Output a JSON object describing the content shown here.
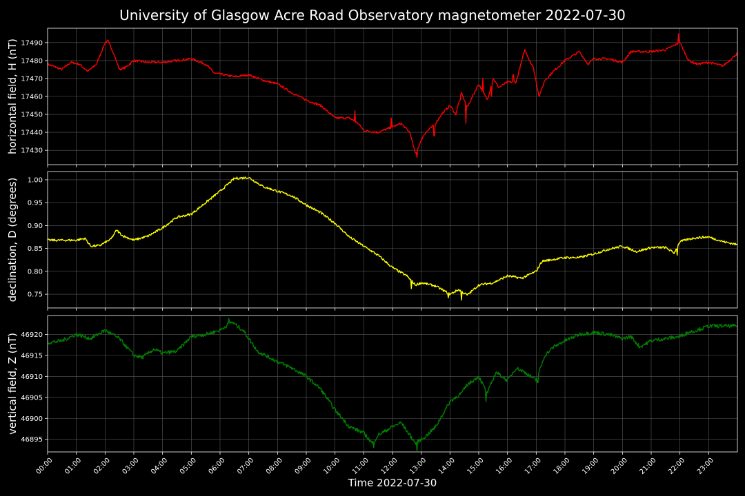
{
  "chart_data": {
    "title": "University of Glasgow Acre Road Observatory magnetometer 2022-07-30",
    "xlabel": "Time 2022-07-30",
    "x_ticks": [
      "00:00",
      "01:00",
      "02:00",
      "03:00",
      "04:00",
      "05:00",
      "06:00",
      "07:00",
      "08:00",
      "09:00",
      "10:00",
      "11:00",
      "12:00",
      "13:00",
      "14:00",
      "15:00",
      "16:00",
      "17:00",
      "18:00",
      "19:00",
      "20:00",
      "21:00",
      "22:00",
      "23:00"
    ],
    "x_range_hours": [
      0,
      24
    ],
    "grid": true,
    "panels": [
      {
        "type": "line",
        "name": "H",
        "ylabel": "horizontal field, H (nT)",
        "color": "#ff0000",
        "ylim": [
          17422,
          17498
        ],
        "y_ticks": [
          17430,
          17440,
          17450,
          17460,
          17470,
          17480,
          17490
        ],
        "noise": 0.6,
        "points": [
          [
            0,
            17478
          ],
          [
            0.5,
            17475
          ],
          [
            0.8,
            17479
          ],
          [
            1.1,
            17478
          ],
          [
            1.4,
            17474
          ],
          [
            1.7,
            17478
          ],
          [
            2.0,
            17490
          ],
          [
            2.1,
            17491
          ],
          [
            2.3,
            17484
          ],
          [
            2.5,
            17475
          ],
          [
            2.7,
            17476
          ],
          [
            3.0,
            17480
          ],
          [
            3.5,
            17479
          ],
          [
            4.0,
            17479
          ],
          [
            4.5,
            17480
          ],
          [
            5.0,
            17481
          ],
          [
            5.5,
            17478
          ],
          [
            5.8,
            17473
          ],
          [
            6.5,
            17471
          ],
          [
            7.0,
            17472
          ],
          [
            7.5,
            17469
          ],
          [
            8.0,
            17467
          ],
          [
            8.5,
            17462
          ],
          [
            9.0,
            17458
          ],
          [
            9.5,
            17455
          ],
          [
            10.0,
            17448
          ],
          [
            10.5,
            17448
          ],
          [
            10.8,
            17445
          ],
          [
            11.0,
            17441
          ],
          [
            11.5,
            17440
          ],
          [
            12.0,
            17443
          ],
          [
            12.3,
            17445
          ],
          [
            12.6,
            17440
          ],
          [
            12.8,
            17428
          ],
          [
            13.1,
            17439
          ],
          [
            13.5,
            17445
          ],
          [
            13.7,
            17450
          ],
          [
            14.0,
            17455
          ],
          [
            14.2,
            17450
          ],
          [
            14.4,
            17462
          ],
          [
            14.6,
            17454
          ],
          [
            15.0,
            17467
          ],
          [
            15.3,
            17458
          ],
          [
            15.5,
            17470
          ],
          [
            15.7,
            17465
          ],
          [
            16.0,
            17468
          ],
          [
            16.3,
            17468
          ],
          [
            16.6,
            17486
          ],
          [
            16.9,
            17476
          ],
          [
            17.1,
            17460
          ],
          [
            17.3,
            17469
          ],
          [
            17.6,
            17474
          ],
          [
            18.0,
            17480
          ],
          [
            18.5,
            17485
          ],
          [
            18.8,
            17478
          ],
          [
            19.0,
            17481
          ],
          [
            19.5,
            17481
          ],
          [
            20.0,
            17479
          ],
          [
            20.3,
            17485
          ],
          [
            20.6,
            17485
          ],
          [
            21.0,
            17485
          ],
          [
            21.5,
            17486
          ],
          [
            22.0,
            17490
          ],
          [
            22.3,
            17480
          ],
          [
            22.6,
            17478
          ],
          [
            23.0,
            17479
          ],
          [
            23.5,
            17477
          ],
          [
            24,
            17484
          ]
        ],
        "spikes": [
          [
            10.7,
            17452
          ],
          [
            10.9,
            17443
          ],
          [
            11.95,
            17448
          ],
          [
            12.85,
            17426
          ],
          [
            13.45,
            17438
          ],
          [
            14.35,
            17458
          ],
          [
            14.55,
            17445
          ],
          [
            15.15,
            17470
          ],
          [
            15.45,
            17460
          ],
          [
            16.2,
            17472
          ],
          [
            16.75,
            17480
          ],
          [
            21.95,
            17495
          ]
        ]
      },
      {
        "type": "line",
        "name": "D",
        "ylabel": "declination, D (degrees)",
        "color": "#ffff00",
        "ylim": [
          0.72,
          1.018
        ],
        "y_ticks": [
          "0.75",
          "0.80",
          "0.85",
          "0.90",
          "0.95",
          "1.00"
        ],
        "noise": 0.0025,
        "points": [
          [
            0,
            0.868
          ],
          [
            0.5,
            0.868
          ],
          [
            1.0,
            0.868
          ],
          [
            1.3,
            0.872
          ],
          [
            1.5,
            0.855
          ],
          [
            1.8,
            0.856
          ],
          [
            2.2,
            0.87
          ],
          [
            2.4,
            0.89
          ],
          [
            2.6,
            0.878
          ],
          [
            3.0,
            0.868
          ],
          [
            3.5,
            0.877
          ],
          [
            4.0,
            0.895
          ],
          [
            4.5,
            0.918
          ],
          [
            5.0,
            0.925
          ],
          [
            5.5,
            0.95
          ],
          [
            6.0,
            0.975
          ],
          [
            6.5,
            1.003
          ],
          [
            7.0,
            1.005
          ],
          [
            7.5,
            0.985
          ],
          [
            8.0,
            0.975
          ],
          [
            8.5,
            0.965
          ],
          [
            9.0,
            0.945
          ],
          [
            9.5,
            0.928
          ],
          [
            10.0,
            0.905
          ],
          [
            10.5,
            0.875
          ],
          [
            11.0,
            0.855
          ],
          [
            11.5,
            0.835
          ],
          [
            12.0,
            0.808
          ],
          [
            12.5,
            0.79
          ],
          [
            12.8,
            0.77
          ],
          [
            13.0,
            0.775
          ],
          [
            13.5,
            0.768
          ],
          [
            14.0,
            0.75
          ],
          [
            14.3,
            0.76
          ],
          [
            14.6,
            0.748
          ],
          [
            15.0,
            0.77
          ],
          [
            15.5,
            0.775
          ],
          [
            16.0,
            0.79
          ],
          [
            16.5,
            0.785
          ],
          [
            17.0,
            0.8
          ],
          [
            17.2,
            0.822
          ],
          [
            17.5,
            0.825
          ],
          [
            18.0,
            0.83
          ],
          [
            18.5,
            0.83
          ],
          [
            19.0,
            0.838
          ],
          [
            19.5,
            0.848
          ],
          [
            20.0,
            0.855
          ],
          [
            20.5,
            0.843
          ],
          [
            21.0,
            0.852
          ],
          [
            21.5,
            0.852
          ],
          [
            21.8,
            0.84
          ],
          [
            22.0,
            0.865
          ],
          [
            22.5,
            0.873
          ],
          [
            23.0,
            0.875
          ],
          [
            23.5,
            0.865
          ],
          [
            24,
            0.858
          ]
        ],
        "spikes": [
          [
            12.65,
            0.762
          ],
          [
            13.95,
            0.742
          ],
          [
            14.4,
            0.737
          ],
          [
            21.9,
            0.835
          ]
        ]
      },
      {
        "type": "line",
        "name": "Z",
        "ylabel": "vertical field, Z (nT)",
        "color": "#008000",
        "ylim": [
          46892,
          46924.5
        ],
        "y_ticks": [
          46895,
          46900,
          46905,
          46910,
          46915,
          46920
        ],
        "noise": 0.45,
        "points": [
          [
            0,
            46918
          ],
          [
            0.5,
            46918.5
          ],
          [
            1.0,
            46920
          ],
          [
            1.5,
            46919
          ],
          [
            2.0,
            46921
          ],
          [
            2.5,
            46919
          ],
          [
            3.0,
            46915
          ],
          [
            3.3,
            46914.5
          ],
          [
            3.7,
            46916.5
          ],
          [
            4.0,
            46915.5
          ],
          [
            4.5,
            46916
          ],
          [
            5.0,
            46919.5
          ],
          [
            5.5,
            46920
          ],
          [
            6.0,
            46921
          ],
          [
            6.4,
            46923
          ],
          [
            6.8,
            46921
          ],
          [
            7.3,
            46916
          ],
          [
            8.0,
            46913.5
          ],
          [
            8.5,
            46912
          ],
          [
            9.0,
            46910
          ],
          [
            9.5,
            46907
          ],
          [
            10.0,
            46902
          ],
          [
            10.5,
            46898
          ],
          [
            11.0,
            46896.5
          ],
          [
            11.3,
            46894
          ],
          [
            11.5,
            46896
          ],
          [
            12.0,
            46898
          ],
          [
            12.3,
            46899
          ],
          [
            12.6,
            46896
          ],
          [
            12.8,
            46894
          ],
          [
            13.2,
            46896
          ],
          [
            13.5,
            46898
          ],
          [
            14.0,
            46904
          ],
          [
            14.4,
            46906
          ],
          [
            14.6,
            46908
          ],
          [
            14.8,
            46909
          ],
          [
            15.0,
            46910
          ],
          [
            15.3,
            46906
          ],
          [
            15.6,
            46911
          ],
          [
            16.0,
            46909
          ],
          [
            16.3,
            46912
          ],
          [
            16.6,
            46911
          ],
          [
            17.0,
            46909
          ],
          [
            17.3,
            46915
          ],
          [
            17.6,
            46917
          ],
          [
            18.0,
            46918.5
          ],
          [
            18.5,
            46920
          ],
          [
            19.0,
            46920.5
          ],
          [
            19.5,
            46920
          ],
          [
            20.0,
            46919
          ],
          [
            20.3,
            46919.5
          ],
          [
            20.6,
            46917
          ],
          [
            21.0,
            46918.5
          ],
          [
            21.5,
            46919
          ],
          [
            22.0,
            46919.5
          ],
          [
            22.3,
            46920.5
          ],
          [
            22.6,
            46921
          ],
          [
            23.0,
            46922
          ],
          [
            23.5,
            46922
          ],
          [
            24,
            46922
          ]
        ],
        "spikes": [
          [
            11.35,
            46893
          ],
          [
            12.85,
            46892.3
          ],
          [
            13.05,
            46895
          ],
          [
            15.25,
            46904
          ],
          [
            17.05,
            46908.5
          ],
          [
            6.3,
            46923.8
          ]
        ]
      }
    ]
  }
}
